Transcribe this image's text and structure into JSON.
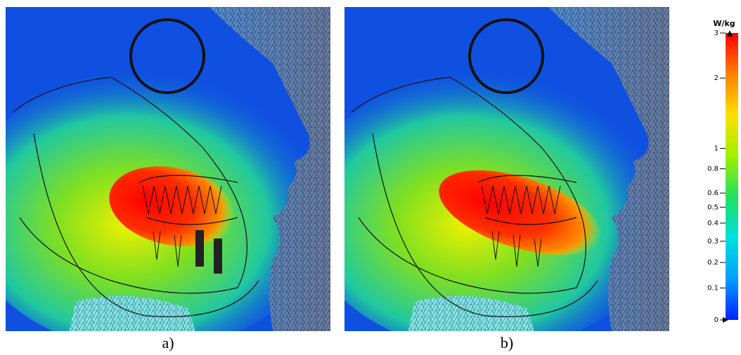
{
  "panels": [
    {
      "label": "a)"
    },
    {
      "label": "b)"
    }
  ],
  "colorbar": {
    "title": "W/kg",
    "ylim": [
      0,
      3
    ],
    "yticks": [
      3,
      2,
      1,
      0.8,
      0.6,
      0.5,
      0.4,
      0.3,
      0.2,
      0.1,
      0
    ],
    "colors": [
      "#0020ff",
      "#00a0ff",
      "#00e0e0",
      "#20e060",
      "#a0f000",
      "#ffe000",
      "#ff8000",
      "#ff0000"
    ]
  }
}
